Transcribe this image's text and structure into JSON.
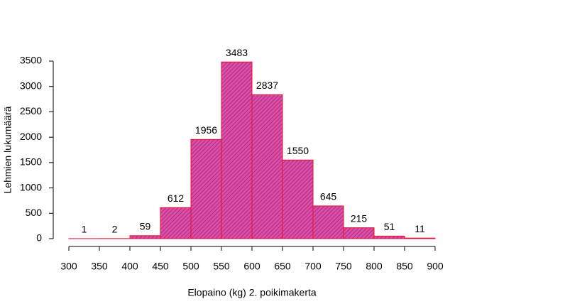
{
  "chart_data": {
    "type": "histogram",
    "x_label": "Elopaino (kg)  2. poikimakerta",
    "y_label": "Lehmien lukumäärä",
    "bins": [
      300,
      350,
      400,
      450,
      500,
      550,
      600,
      650,
      700,
      750,
      800,
      850,
      900
    ],
    "values": [
      1,
      2,
      59,
      612,
      1956,
      3483,
      2837,
      1550,
      645,
      215,
      51,
      11
    ],
    "color": "#cc3399",
    "edge_color": "#e8102a",
    "xlim": [
      300,
      900
    ],
    "xticks": [
      300,
      350,
      400,
      450,
      500,
      550,
      600,
      650,
      700,
      750,
      800,
      850,
      900
    ],
    "ylim": [
      0,
      3500
    ],
    "yticks": [
      0,
      500,
      1000,
      1500,
      2000,
      2500,
      3000,
      3500
    ]
  }
}
